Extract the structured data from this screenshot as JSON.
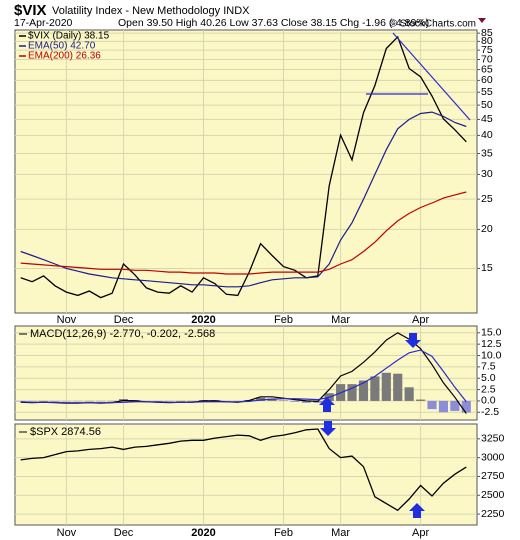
{
  "header": {
    "symbol": "$VIX",
    "name": "Volatility Index - New Methodology INDX",
    "date": "17-Apr-2020",
    "quote": "Open 39.50 High 40.26 Low 37.63 Close 38.15 Chg -1.96 (-4.89%)",
    "credit": "© StockCharts.com"
  },
  "chart_data": [
    {
      "type": "line",
      "log_scale": true,
      "grid": true,
      "categories": [
        null,
        null,
        null,
        null,
        "Nov",
        null,
        null,
        null,
        null,
        "Dec",
        null,
        null,
        null,
        null,
        null,
        null,
        "2020",
        null,
        null,
        null,
        null,
        null,
        null,
        "Feb",
        null,
        null,
        null,
        null,
        "Mar",
        null,
        null,
        null,
        null,
        null,
        null,
        "Apr",
        null,
        null,
        null,
        null
      ],
      "series": [
        {
          "name": "$VIX (Daily) 38.15",
          "color": "#000000",
          "values": [
            14.0,
            13.6,
            14.2,
            13.2,
            12.6,
            12.3,
            12.7,
            12.1,
            12.5,
            15.5,
            14.3,
            13.0,
            12.6,
            12.5,
            13.2,
            12.6,
            14.0,
            13.4,
            12.4,
            12.3,
            14.6,
            18.0,
            16.5,
            15.2,
            14.8,
            14.0,
            14.2,
            27.6,
            40.1,
            33.4,
            47.3,
            57.8,
            75.9,
            82.7,
            65.5,
            61.6,
            53.5,
            45.2,
            41.7,
            38.15
          ]
        },
        {
          "name": "EMA(50) 42.70",
          "color": "#1c1c8c",
          "values": [
            17.0,
            16.5,
            16.0,
            15.5,
            15.0,
            14.7,
            14.4,
            14.2,
            14.0,
            13.9,
            13.8,
            13.7,
            13.6,
            13.5,
            13.4,
            13.3,
            13.3,
            13.2,
            13.1,
            13.1,
            13.2,
            13.5,
            13.8,
            13.9,
            14.0,
            14.0,
            14.1,
            15.5,
            18.5,
            21.0,
            25.0,
            30.0,
            36.0,
            42.0,
            45.0,
            47.0,
            47.5,
            46.0,
            44.0,
            42.7
          ]
        },
        {
          "name": "EMA(200) 26.36",
          "color": "#c00000",
          "values": [
            15.6,
            15.5,
            15.4,
            15.3,
            15.2,
            15.1,
            15.0,
            14.9,
            14.9,
            14.9,
            14.8,
            14.8,
            14.7,
            14.6,
            14.6,
            14.5,
            14.5,
            14.5,
            14.4,
            14.4,
            14.4,
            14.5,
            14.6,
            14.6,
            14.6,
            14.6,
            14.6,
            14.9,
            15.5,
            16.0,
            17.0,
            18.2,
            19.8,
            21.3,
            22.5,
            23.5,
            24.3,
            25.2,
            25.8,
            26.36
          ]
        }
      ],
      "ylim": [
        10.8,
        87
      ],
      "yticks": [
        15,
        20,
        25,
        30,
        35,
        40,
        45,
        50,
        55,
        60,
        65,
        70,
        75,
        80,
        85
      ]
    },
    {
      "type": "macd",
      "title": "MACD(12,26,9) -2.770, -0.202, -2.568",
      "grid": true,
      "series": [
        {
          "type": "bar",
          "color": "#7a7a7a",
          "negative_color": "#8c8cd8",
          "values": [
            -0.1,
            -0.1,
            0.0,
            -0.1,
            -0.1,
            -0.1,
            0.0,
            -0.1,
            0.0,
            0.4,
            0.2,
            0.0,
            -0.1,
            -0.1,
            0.0,
            0.0,
            0.2,
            0.2,
            0.0,
            -0.1,
            0.2,
            0.7,
            0.5,
            0.1,
            -0.2,
            -0.4,
            -0.4,
            1.7,
            3.7,
            3.7,
            4.5,
            5.4,
            6.2,
            6.0,
            3.0,
            0.3,
            -1.8,
            -2.5,
            -2.2,
            -2.568
          ]
        },
        {
          "type": "line",
          "color": "#000000",
          "values": [
            -0.3,
            -0.4,
            -0.3,
            -0.4,
            -0.5,
            -0.5,
            -0.4,
            -0.5,
            -0.4,
            0.1,
            0.0,
            -0.2,
            -0.3,
            -0.4,
            -0.3,
            -0.3,
            0.0,
            0.0,
            -0.2,
            -0.3,
            0.1,
            0.9,
            0.9,
            0.6,
            0.3,
            0.0,
            -0.1,
            2.5,
            5.5,
            6.5,
            8.5,
            10.8,
            13.4,
            15.0,
            13.6,
            11.5,
            8.0,
            4.0,
            0.8,
            -2.77
          ]
        },
        {
          "type": "line",
          "color": "#2a2ad0",
          "values": [
            -0.2,
            -0.3,
            -0.3,
            -0.3,
            -0.4,
            -0.4,
            -0.4,
            -0.4,
            -0.4,
            -0.3,
            -0.2,
            -0.2,
            -0.2,
            -0.3,
            -0.3,
            -0.3,
            -0.2,
            -0.2,
            -0.2,
            -0.2,
            -0.1,
            0.2,
            0.4,
            0.5,
            0.5,
            0.4,
            0.3,
            0.8,
            1.8,
            2.8,
            4.0,
            5.4,
            7.2,
            9.0,
            10.6,
            11.2,
            9.8,
            6.5,
            3.0,
            -0.202
          ]
        }
      ],
      "ylim": [
        -4.2,
        16.5
      ],
      "yticks": [
        {
          "value": 15,
          "label": "15.0"
        },
        {
          "value": 12.5,
          "label": "12.5"
        },
        {
          "value": 10,
          "label": "10.0"
        },
        {
          "value": 7.5,
          "label": "7.5"
        },
        {
          "value": 5,
          "label": "5.0"
        },
        {
          "value": 2.5,
          "label": "2.5"
        },
        {
          "value": 0,
          "label": "0.0"
        },
        -2.5
      ]
    },
    {
      "type": "line",
      "title": "$SPX 2874.56",
      "grid": true,
      "categories": [
        null,
        null,
        null,
        null,
        "Nov",
        null,
        null,
        null,
        null,
        "Dec",
        null,
        null,
        null,
        null,
        null,
        null,
        "2020",
        null,
        null,
        null,
        null,
        null,
        null,
        "Feb",
        null,
        null,
        null,
        null,
        "Mar",
        null,
        null,
        null,
        null,
        null,
        null,
        "Apr",
        null,
        null,
        null,
        null
      ],
      "series": [
        {
          "color": "#000000",
          "values": [
            2970,
            2990,
            3000,
            3040,
            3080,
            3090,
            3110,
            3120,
            3140,
            3110,
            3140,
            3150,
            3170,
            3190,
            3220,
            3230,
            3230,
            3260,
            3280,
            3300,
            3290,
            3230,
            3280,
            3300,
            3330,
            3370,
            3380,
            3120,
            3000,
            3020,
            2880,
            2480,
            2390,
            2300,
            2450,
            2630,
            2490,
            2660,
            2780,
            2874.56
          ]
        }
      ],
      "ylim": [
        2105,
        3447
      ],
      "yticks": [
        2250,
        2500,
        2750,
        3000,
        3250
      ]
    }
  ]
}
